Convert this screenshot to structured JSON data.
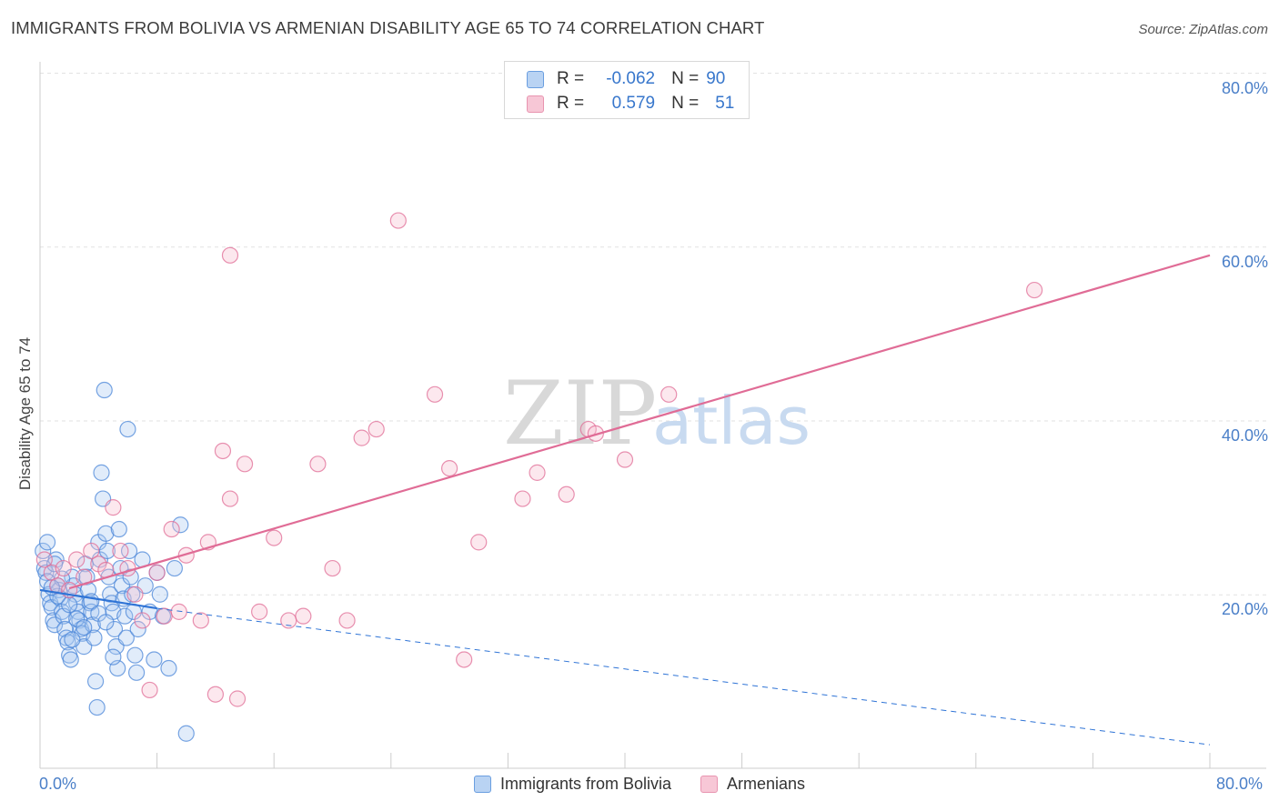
{
  "header": {
    "title": "IMMIGRANTS FROM BOLIVIA VS ARMENIAN DISABILITY AGE 65 TO 74 CORRELATION CHART",
    "source": "Source: ZipAtlas.com"
  },
  "legend_top": {
    "rows": [
      {
        "r_label": "R =",
        "r_value": "-0.062",
        "n_label": "N =",
        "n_value": "90"
      },
      {
        "r_label": "R =",
        "r_value": "0.579",
        "n_label": "N =",
        "n_value": "51"
      }
    ]
  },
  "watermark": {
    "zip": "ZIP",
    "atlas": "atlas"
  },
  "colors": {
    "blue": "#4a86d8",
    "blue_fill": "#a9c8f0",
    "pink": "#e06c96",
    "pink_fill": "#f5bccd",
    "tick_text": "#4a7fc8",
    "grid": "#e2e2e2"
  },
  "chart_data": {
    "type": "scatter",
    "title": "IMMIGRANTS FROM BOLIVIA VS ARMENIAN DISABILITY AGE 65 TO 74 CORRELATION CHART",
    "xlabel": "",
    "ylabel": "Disability Age 65 to 74",
    "xlim": [
      0,
      80
    ],
    "ylim": [
      0,
      80
    ],
    "x_tick_labels": [
      "0.0%",
      "80.0%"
    ],
    "y_tick_labels": [
      "20.0%",
      "40.0%",
      "60.0%",
      "80.0%"
    ],
    "y_ticks": [
      20,
      40,
      60,
      80
    ],
    "x_minor_ticks": [
      8,
      16,
      24,
      32,
      40,
      48,
      56,
      64,
      72,
      80
    ],
    "series": [
      {
        "name": "Immigrants from Bolivia",
        "color": "blue",
        "r": -0.062,
        "n": 90,
        "trend_solid": {
          "x": [
            0,
            8
          ],
          "y": [
            20.5,
            18.4
          ]
        },
        "trend_dashed": {
          "x": [
            8,
            80
          ],
          "y": [
            18.4,
            2.7
          ]
        },
        "points": [
          [
            0.2,
            25
          ],
          [
            0.3,
            23
          ],
          [
            0.4,
            22.5
          ],
          [
            0.5,
            21.5
          ],
          [
            0.6,
            20
          ],
          [
            0.7,
            19
          ],
          [
            0.8,
            18.5
          ],
          [
            0.9,
            17
          ],
          [
            1.0,
            16.5
          ],
          [
            1.1,
            24
          ],
          [
            1.2,
            21
          ],
          [
            1.3,
            20.5
          ],
          [
            1.4,
            19.5
          ],
          [
            1.5,
            18
          ],
          [
            1.6,
            17.5
          ],
          [
            1.7,
            16
          ],
          [
            1.8,
            15
          ],
          [
            1.9,
            14.5
          ],
          [
            2.0,
            13
          ],
          [
            2.1,
            12.5
          ],
          [
            2.2,
            22
          ],
          [
            2.3,
            21
          ],
          [
            2.4,
            20
          ],
          [
            2.5,
            19
          ],
          [
            2.6,
            18
          ],
          [
            2.7,
            17
          ],
          [
            2.8,
            16
          ],
          [
            2.9,
            15.5
          ],
          [
            3.0,
            14
          ],
          [
            3.1,
            23.5
          ],
          [
            3.2,
            22
          ],
          [
            3.3,
            20.5
          ],
          [
            3.4,
            19
          ],
          [
            3.5,
            18
          ],
          [
            3.6,
            16.5
          ],
          [
            3.7,
            15
          ],
          [
            3.8,
            10
          ],
          [
            3.9,
            7
          ],
          [
            4.0,
            26
          ],
          [
            4.1,
            24
          ],
          [
            4.2,
            34
          ],
          [
            4.3,
            31
          ],
          [
            4.4,
            43.5
          ],
          [
            4.5,
            27
          ],
          [
            4.6,
            25
          ],
          [
            4.7,
            22
          ],
          [
            4.8,
            20
          ],
          [
            4.9,
            19
          ],
          [
            5.0,
            18
          ],
          [
            5.1,
            16
          ],
          [
            5.2,
            14
          ],
          [
            5.3,
            11.5
          ],
          [
            5.4,
            27.5
          ],
          [
            5.5,
            23
          ],
          [
            5.6,
            21
          ],
          [
            5.7,
            19.5
          ],
          [
            5.8,
            17.5
          ],
          [
            5.9,
            15
          ],
          [
            6.0,
            39
          ],
          [
            6.1,
            25
          ],
          [
            6.2,
            22
          ],
          [
            6.3,
            20
          ],
          [
            6.4,
            18
          ],
          [
            6.5,
            13
          ],
          [
            6.6,
            11
          ],
          [
            6.7,
            16
          ],
          [
            7.0,
            24
          ],
          [
            7.2,
            21
          ],
          [
            7.5,
            18
          ],
          [
            7.8,
            12.5
          ],
          [
            8.0,
            22.5
          ],
          [
            8.2,
            20
          ],
          [
            8.4,
            17.5
          ],
          [
            8.8,
            11.5
          ],
          [
            9.2,
            23
          ],
          [
            9.6,
            28
          ],
          [
            10.0,
            4
          ],
          [
            0.5,
            26
          ],
          [
            1.0,
            23.5
          ],
          [
            1.5,
            21.8
          ],
          [
            2.0,
            18.8
          ],
          [
            2.5,
            17.2
          ],
          [
            3.0,
            16.2
          ],
          [
            3.5,
            19.2
          ],
          [
            4.0,
            17.8
          ],
          [
            4.5,
            16.8
          ],
          [
            5.0,
            12.8
          ],
          [
            1.2,
            19.8
          ],
          [
            0.8,
            20.8
          ],
          [
            2.2,
            14.8
          ]
        ]
      },
      {
        "name": "Armenians",
        "color": "pink",
        "r": 0.579,
        "n": 51,
        "trend_solid": {
          "x": [
            2,
            80
          ],
          "y": [
            20.7,
            59
          ]
        },
        "points": [
          [
            0.3,
            24
          ],
          [
            0.8,
            22.5
          ],
          [
            1.2,
            21
          ],
          [
            1.6,
            23
          ],
          [
            2.0,
            20.5
          ],
          [
            2.5,
            24
          ],
          [
            3.0,
            22
          ],
          [
            3.5,
            25
          ],
          [
            4.0,
            23.5
          ],
          [
            4.5,
            22.8
          ],
          [
            5.0,
            30
          ],
          [
            5.5,
            25
          ],
          [
            6.0,
            23
          ],
          [
            6.5,
            20
          ],
          [
            7.0,
            17
          ],
          [
            7.5,
            9
          ],
          [
            8.0,
            22.5
          ],
          [
            8.5,
            17.5
          ],
          [
            9.0,
            27.5
          ],
          [
            9.5,
            18
          ],
          [
            10,
            24.5
          ],
          [
            11,
            17
          ],
          [
            11.5,
            26
          ],
          [
            12,
            8.5
          ],
          [
            12.5,
            36.5
          ],
          [
            13,
            31
          ],
          [
            13.5,
            8
          ],
          [
            14,
            35
          ],
          [
            15,
            18
          ],
          [
            16,
            26.5
          ],
          [
            17,
            17
          ],
          [
            18,
            17.5
          ],
          [
            19,
            35
          ],
          [
            20,
            23
          ],
          [
            21,
            17
          ],
          [
            22,
            38
          ],
          [
            23,
            39
          ],
          [
            24.5,
            63
          ],
          [
            27,
            43
          ],
          [
            28,
            34.5
          ],
          [
            29,
            12.5
          ],
          [
            30,
            26
          ],
          [
            33,
            31
          ],
          [
            34,
            34
          ],
          [
            36,
            31.5
          ],
          [
            37.5,
            39
          ],
          [
            38,
            38.5
          ],
          [
            40,
            35.5
          ],
          [
            43,
            43
          ],
          [
            68,
            55
          ],
          [
            13,
            59
          ]
        ]
      }
    ]
  },
  "bottom_legend": {
    "items": [
      {
        "label": "Immigrants from Bolivia"
      },
      {
        "label": "Armenians"
      }
    ]
  }
}
